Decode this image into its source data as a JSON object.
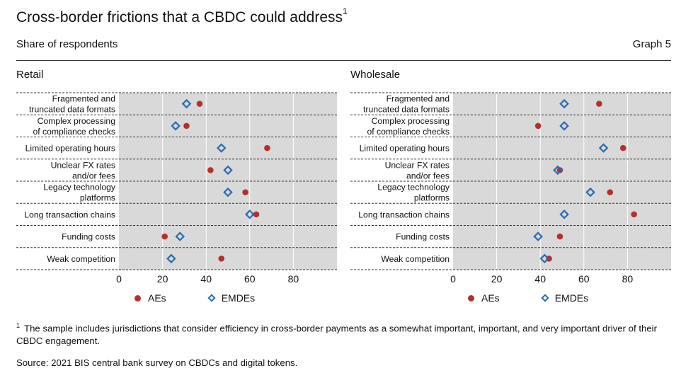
{
  "header": {
    "title": "Cross-border frictions that a CBDC could address",
    "title_sup": "1",
    "subtitle": "Share of respondents",
    "graph_label": "Graph 5"
  },
  "colors": {
    "aes": "#b5302d",
    "emdes": "#2a6ab4",
    "plot_bg": "#d9d9d9"
  },
  "chart_data": [
    {
      "type": "scatter",
      "title": "Retail",
      "categories": [
        "Fragmented and|truncated data formats",
        "Complex processing|of compliance checks",
        "Limited operating hours",
        "Unclear FX rates|and/or fees",
        "Legacy technology|platforms",
        "Long transaction chains",
        "Funding costs",
        "Weak competition"
      ],
      "series": [
        {
          "name": "AEs",
          "marker": "dot",
          "values": [
            37,
            31,
            68,
            42,
            58,
            63,
            21,
            47
          ]
        },
        {
          "name": "EMDEs",
          "marker": "diamond",
          "values": [
            31,
            26,
            47,
            50,
            50,
            60,
            28,
            24
          ]
        }
      ],
      "xticks": [
        0,
        20,
        40,
        60,
        80
      ],
      "xlim": [
        0,
        100
      ]
    },
    {
      "type": "scatter",
      "title": "Wholesale",
      "categories": [
        "Fragmented and|truncated data formats",
        "Complex processing|of compliance checks",
        "Limited operating hours",
        "Unclear FX rates|and/or fees",
        "Legacy technology|platforms",
        "Long transaction chains",
        "Funding costs",
        "Weak competition"
      ],
      "series": [
        {
          "name": "AEs",
          "marker": "dot",
          "values": [
            67,
            39,
            78,
            49,
            72,
            83,
            49,
            44
          ]
        },
        {
          "name": "EMDEs",
          "marker": "diamond",
          "values": [
            51,
            51,
            69,
            48,
            63,
            51,
            39,
            42
          ]
        }
      ],
      "xticks": [
        0,
        20,
        40,
        60,
        80
      ],
      "xlim": [
        0,
        100
      ]
    }
  ],
  "legend": {
    "aes": "AEs",
    "emdes": "EMDEs"
  },
  "footnote": {
    "marker": "1",
    "text": "The sample includes jurisdictions that consider efficiency in cross-border payments as a somewhat important, important, and very important driver of their CBDC engagement."
  },
  "source": "Source: 2021 BIS central bank survey on CBDCs and digital tokens."
}
